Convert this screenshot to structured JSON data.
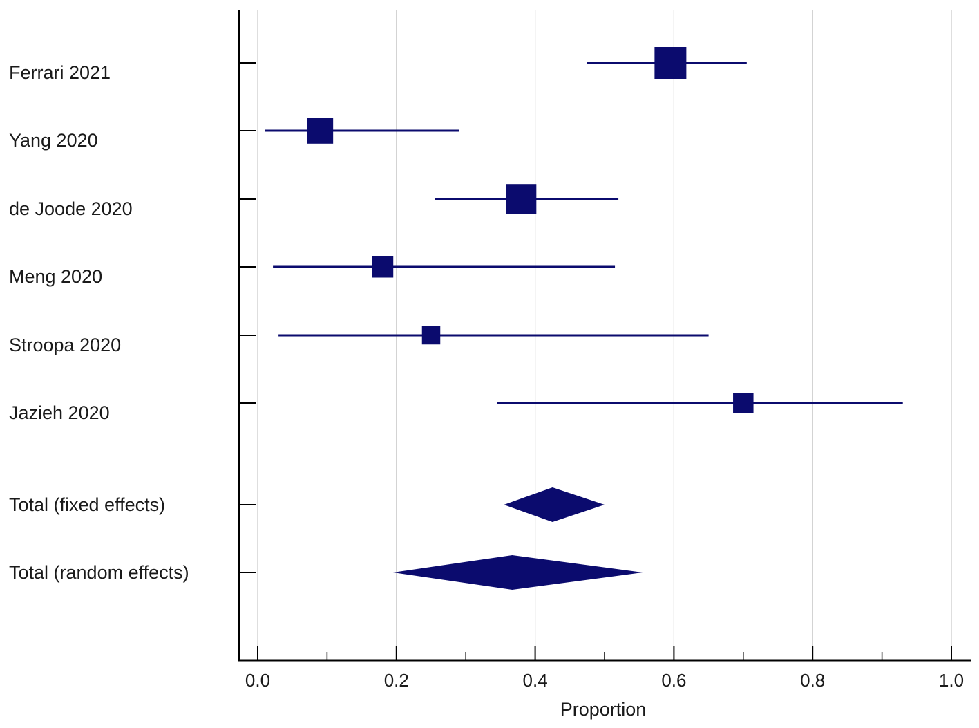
{
  "chart_data": {
    "type": "forest",
    "xlabel": "Proportion",
    "xlim": [
      0.0,
      1.0
    ],
    "xticks": [
      "0.0",
      "0.2",
      "0.4",
      "0.6",
      "0.8",
      "1.0"
    ],
    "minor_ticks": [
      0.1,
      0.3,
      0.5,
      0.7,
      0.9
    ],
    "grid": true,
    "color": "#0b0b6e",
    "studies": [
      {
        "label": "Ferrari 2021",
        "estimate": 0.595,
        "lower": 0.475,
        "upper": 0.705,
        "weight": 1.0
      },
      {
        "label": "Yang 2020",
        "estimate": 0.09,
        "lower": 0.01,
        "upper": 0.29,
        "weight": 0.72
      },
      {
        "label": "de Joode 2020",
        "estimate": 0.38,
        "lower": 0.255,
        "upper": 0.52,
        "weight": 0.92
      },
      {
        "label": "Meng 2020",
        "estimate": 0.18,
        "lower": 0.022,
        "upper": 0.515,
        "weight": 0.5
      },
      {
        "label": "Stroopa 2020",
        "estimate": 0.25,
        "lower": 0.03,
        "upper": 0.65,
        "weight": 0.35
      },
      {
        "label": "Jazieh 2020",
        "estimate": 0.7,
        "lower": 0.345,
        "upper": 0.93,
        "weight": 0.45
      }
    ],
    "totals": [
      {
        "label": "Total (fixed effects)",
        "estimate": 0.425,
        "lower": 0.355,
        "upper": 0.5
      },
      {
        "label": "Total (random effects)",
        "estimate": 0.367,
        "lower": 0.195,
        "upper": 0.555
      }
    ]
  }
}
